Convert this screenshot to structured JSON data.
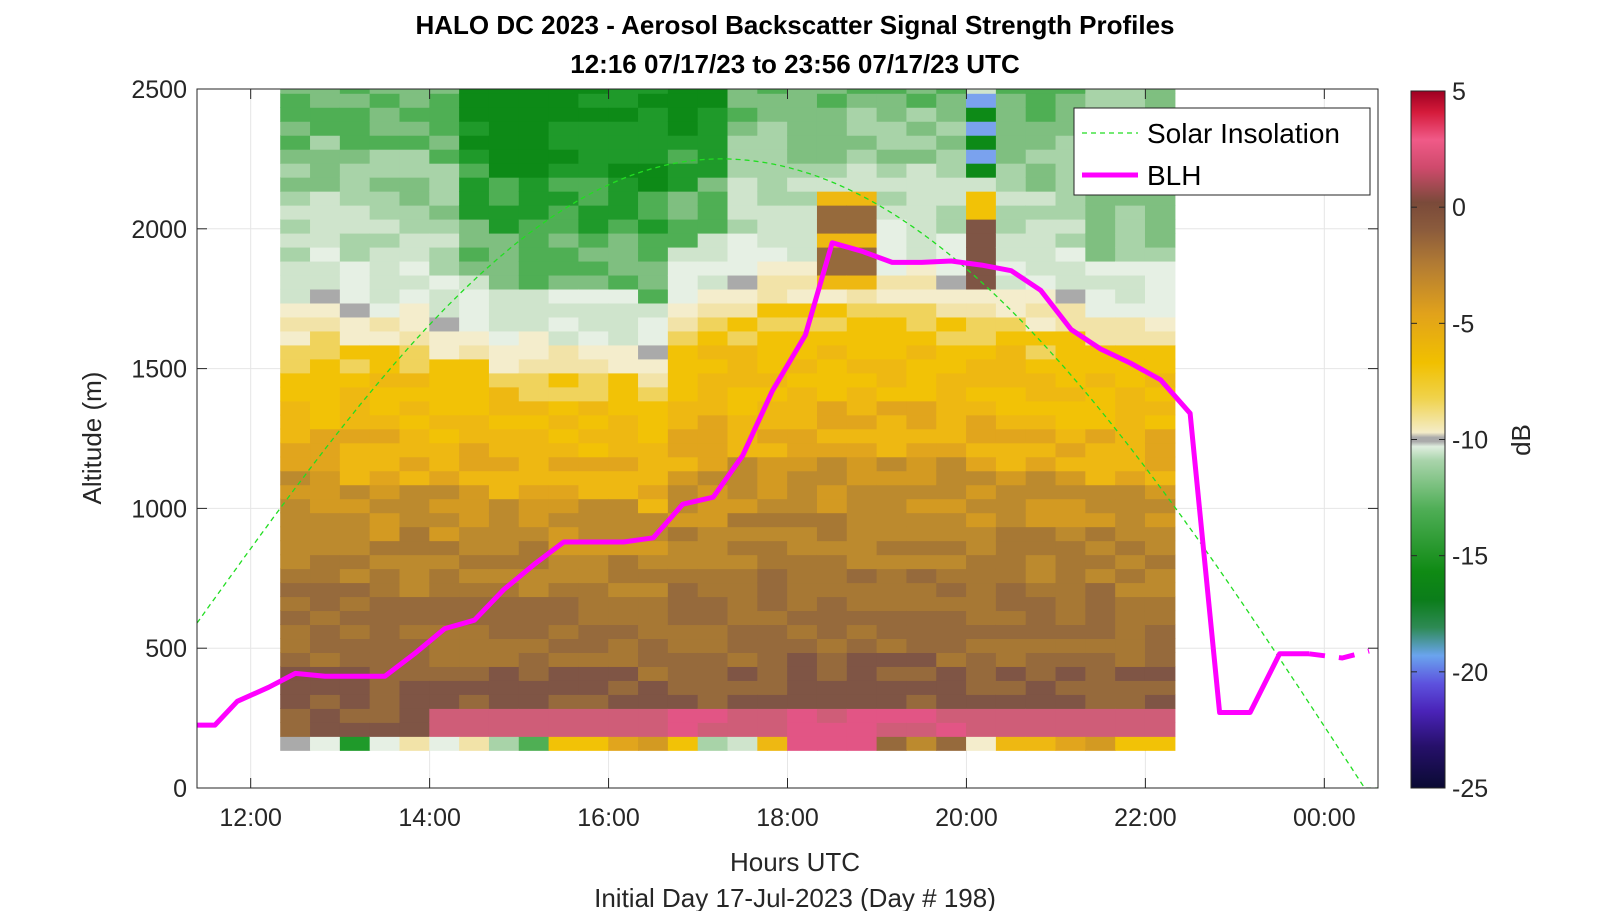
{
  "chart_data": {
    "type": "heatmap",
    "title": "HALO DC 2023 - Aerosol Backscatter Signal Strength Profiles",
    "subtitle": "12:16 07/17/23 to 23:56 07/17/23  UTC",
    "xlabel": "Hours UTC",
    "x_sublabel": "Initial Day 17-Jul-2023 (Day # 198)",
    "ylabel": "Altitude (m)",
    "colorbar_label": "dB",
    "xlim": [
      11.4,
      24.6
    ],
    "ylim": [
      0,
      2500
    ],
    "x_ticks": [
      {
        "value": 12,
        "label": "12:00"
      },
      {
        "value": 14,
        "label": "14:00"
      },
      {
        "value": 16,
        "label": "16:00"
      },
      {
        "value": 18,
        "label": "18:00"
      },
      {
        "value": 20,
        "label": "20:00"
      },
      {
        "value": 22,
        "label": "22:00"
      },
      {
        "value": 24,
        "label": "00:00"
      }
    ],
    "y_ticks": [
      {
        "value": 0,
        "label": "0"
      },
      {
        "value": 500,
        "label": "500"
      },
      {
        "value": 1000,
        "label": "1000"
      },
      {
        "value": 1500,
        "label": "1500"
      },
      {
        "value": 2000,
        "label": "2000"
      },
      {
        "value": 2500,
        "label": "2500"
      }
    ],
    "colorbar": {
      "range": [
        -25,
        5
      ],
      "ticks": [
        {
          "value": 5,
          "label": "5"
        },
        {
          "value": 0,
          "label": "0"
        },
        {
          "value": -5,
          "label": "-5"
        },
        {
          "value": -10,
          "label": "-10"
        },
        {
          "value": -15,
          "label": "-15"
        },
        {
          "value": -20,
          "label": "-20"
        },
        {
          "value": -25,
          "label": "-25"
        }
      ]
    },
    "grid": true,
    "legend": {
      "placement": "top-right",
      "entries": [
        {
          "name": "Solar Insolation",
          "style": "dashed",
          "color": "#22dd22"
        },
        {
          "name": "BLH",
          "style": "solid",
          "color": "#ff00ff"
        }
      ]
    },
    "heatmap": {
      "x_start": 12.33,
      "x_step": 0.3333,
      "y_start": 135,
      "y_step": 50,
      "columns": 30,
      "rows": 48
    },
    "series": [
      {
        "name": "BLH",
        "color": "#ff00ff",
        "x": [
          11.4,
          11.6,
          11.85,
          12.2,
          12.5,
          12.83,
          13.17,
          13.5,
          13.83,
          14.17,
          14.5,
          14.83,
          15.17,
          15.5,
          15.83,
          16.17,
          16.5,
          16.83,
          17.17,
          17.5,
          17.83,
          18.2,
          18.5,
          18.83,
          19.17,
          19.5,
          19.83,
          20.17,
          20.5,
          20.83,
          21.17,
          21.5,
          21.83,
          22.17,
          22.5,
          22.83,
          23.17,
          23.5,
          23.83,
          24.2,
          24.5
        ],
        "y": [
          225,
          225,
          310,
          360,
          410,
          400,
          400,
          400,
          480,
          570,
          600,
          710,
          800,
          880,
          880,
          880,
          895,
          1015,
          1040,
          1190,
          1420,
          1620,
          1950,
          1920,
          1880,
          1880,
          1885,
          1870,
          1850,
          1780,
          1640,
          1570,
          1520,
          1460,
          1340,
          270,
          270,
          480,
          480,
          465,
          490
        ]
      },
      {
        "name": "Solar Insolation",
        "color": "#22dd22",
        "x_range": [
          11.4,
          24.6
        ],
        "peak_x": 17.25,
        "peak_y": 2250,
        "left_y": 590,
        "end_x": 24.45
      }
    ]
  }
}
